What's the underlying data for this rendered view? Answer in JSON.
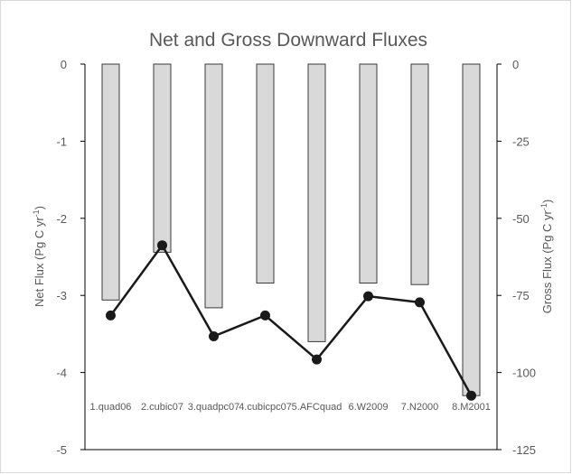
{
  "chart_data": {
    "type": "bar+line",
    "title": "Net and Gross Downward Fluxes",
    "categories": [
      "1.quad06",
      "2.cubic07",
      "3.quadpc07",
      "4.cubicpc07",
      "5.AFCquad",
      "6.W2009",
      "7.N2000",
      "8.M2001"
    ],
    "left_axis": {
      "label_main": "Net Flux (Pg C yr",
      "label_sup": "-1",
      "label_end": ")",
      "ylim": [
        -5,
        0
      ],
      "ticks": [
        "0",
        "-1",
        "-2",
        "-3",
        "-4",
        "-5"
      ]
    },
    "right_axis": {
      "label_main": "Gross Flux (Pg C yr",
      "label_sup": "-1",
      "label_end": ")",
      "ylim": [
        -125,
        0
      ],
      "ticks": [
        "0",
        "-25",
        "-50",
        "-75",
        "-100",
        "-125"
      ]
    },
    "series": [
      {
        "type": "bar",
        "axis": "right",
        "values": [
          -76.5,
          -61,
          -79,
          -71,
          -90,
          -71,
          -71.5,
          -107.5
        ]
      },
      {
        "type": "line",
        "axis": "left",
        "values": [
          -3.26,
          -2.35,
          -3.53,
          -3.26,
          -3.83,
          -3.01,
          -3.09,
          -4.3
        ]
      }
    ],
    "colors": {
      "bar_fill": "#d9d9d9",
      "bar_stroke": "#3a3a3a",
      "line": "#1a1a1a",
      "marker": "#1a1a1a",
      "axis": "#000000",
      "text": "#595959"
    }
  }
}
